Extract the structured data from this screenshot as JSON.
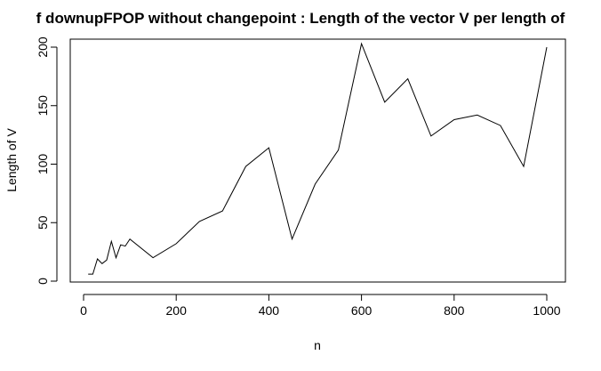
{
  "chart_data": {
    "type": "line",
    "title": "f downupFPOP without changepoint : Length of the vector V per length of",
    "xlabel": "n",
    "ylabel": "Length of V",
    "xlim": [
      0,
      1000
    ],
    "ylim": [
      0,
      200
    ],
    "x_ticks": [
      0,
      200,
      400,
      600,
      800,
      1000
    ],
    "y_ticks": [
      0,
      50,
      100,
      150,
      200
    ],
    "grid": false,
    "legend": "none",
    "series": [
      {
        "color": "#000000",
        "x": [
          10,
          20,
          30,
          40,
          50,
          60,
          70,
          80,
          90,
          100,
          150,
          200,
          250,
          300,
          350,
          400,
          450,
          500,
          550,
          600,
          650,
          700,
          750,
          800,
          850,
          900,
          950,
          1000
        ],
        "y": [
          6,
          6,
          19,
          15,
          18,
          34,
          20,
          31,
          30,
          36,
          20,
          32,
          51,
          60,
          98,
          114,
          36,
          83,
          112,
          203,
          153,
          173,
          124,
          138,
          142,
          133,
          98,
          200
        ]
      }
    ]
  }
}
